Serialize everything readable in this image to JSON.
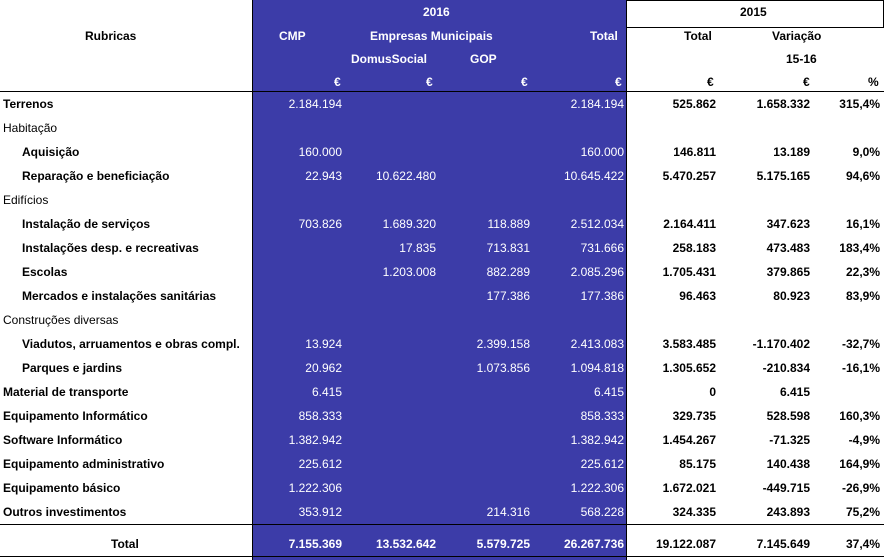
{
  "header": {
    "rubricas": "Rubricas",
    "year_2016": "2016",
    "year_2015": "2015",
    "cmp": "CMP",
    "empresas": "Empresas Municipais",
    "domus": "DomusSocial",
    "gop": "GOP",
    "total_2016": "Total",
    "total_2015": "Total",
    "variacao": "Variação",
    "variacao_range": "15-16",
    "unit_cmp": "€",
    "unit_domus": "€",
    "unit_gop": "€",
    "unit_total": "€",
    "unit_total15": "€",
    "unit_var": "€",
    "unit_pct": "%"
  },
  "rows": [
    {
      "label": "Terrenos",
      "indent": 0,
      "bold": true,
      "cmp": "2.184.194",
      "domus": "",
      "gop": "",
      "total": "2.184.194",
      "t15": "525.862",
      "var": "1.658.332",
      "pct": "315,4%"
    },
    {
      "label": "Habitação",
      "indent": 0,
      "bold": false,
      "cmp": "",
      "domus": "",
      "gop": "",
      "total": "",
      "t15": "",
      "var": "",
      "pct": ""
    },
    {
      "label": "Aquisição",
      "indent": 1,
      "bold": true,
      "cmp": "160.000",
      "domus": "",
      "gop": "",
      "total": "160.000",
      "t15": "146.811",
      "var": "13.189",
      "pct": "9,0%"
    },
    {
      "label": "Reparação e beneficiação",
      "indent": 1,
      "bold": true,
      "cmp": "22.943",
      "domus": "10.622.480",
      "gop": "",
      "total": "10.645.422",
      "t15": "5.470.257",
      "var": "5.175.165",
      "pct": "94,6%"
    },
    {
      "label": "Edifícios",
      "indent": 0,
      "bold": false,
      "cmp": "",
      "domus": "",
      "gop": "",
      "total": "",
      "t15": "",
      "var": "",
      "pct": ""
    },
    {
      "label": "Instalação de serviços",
      "indent": 1,
      "bold": true,
      "cmp": "703.826",
      "domus": "1.689.320",
      "gop": "118.889",
      "total": "2.512.034",
      "t15": "2.164.411",
      "var": "347.623",
      "pct": "16,1%"
    },
    {
      "label": "Instalações desp. e recreativas",
      "indent": 1,
      "bold": true,
      "cmp": "",
      "domus": "17.835",
      "gop": "713.831",
      "total": "731.666",
      "t15": "258.183",
      "var": "473.483",
      "pct": "183,4%"
    },
    {
      "label": "Escolas",
      "indent": 1,
      "bold": true,
      "cmp": "",
      "domus": "1.203.008",
      "gop": "882.289",
      "total": "2.085.296",
      "t15": "1.705.431",
      "var": "379.865",
      "pct": "22,3%"
    },
    {
      "label": "Mercados e instalações sanitárias",
      "indent": 1,
      "bold": true,
      "cmp": "",
      "domus": "",
      "gop": "177.386",
      "total": "177.386",
      "t15": "96.463",
      "var": "80.923",
      "pct": "83,9%"
    },
    {
      "label": "Construções diversas",
      "indent": 0,
      "bold": false,
      "cmp": "",
      "domus": "",
      "gop": "",
      "total": "",
      "t15": "",
      "var": "",
      "pct": ""
    },
    {
      "label": "Viadutos, arruamentos e obras compl.",
      "indent": 1,
      "bold": true,
      "cmp": "13.924",
      "domus": "",
      "gop": "2.399.158",
      "total": "2.413.083",
      "t15": "3.583.485",
      "var": "-1.170.402",
      "pct": "-32,7%"
    },
    {
      "label": "Parques e jardins",
      "indent": 1,
      "bold": true,
      "cmp": "20.962",
      "domus": "",
      "gop": "1.073.856",
      "total": "1.094.818",
      "t15": "1.305.652",
      "var": "-210.834",
      "pct": "-16,1%"
    },
    {
      "label": "Material de transporte",
      "indent": 0,
      "bold": true,
      "cmp": "6.415",
      "domus": "",
      "gop": "",
      "total": "6.415",
      "t15": "0",
      "var": "6.415",
      "pct": ""
    },
    {
      "label": "Equipamento Informático",
      "indent": 0,
      "bold": true,
      "cmp": "858.333",
      "domus": "",
      "gop": "",
      "total": "858.333",
      "t15": "329.735",
      "var": "528.598",
      "pct": "160,3%"
    },
    {
      "label": "Software Informático",
      "indent": 0,
      "bold": true,
      "cmp": "1.382.942",
      "domus": "",
      "gop": "",
      "total": "1.382.942",
      "t15": "1.454.267",
      "var": "-71.325",
      "pct": "-4,9%"
    },
    {
      "label": "Equipamento administrativo",
      "indent": 0,
      "bold": true,
      "cmp": "225.612",
      "domus": "",
      "gop": "",
      "total": "225.612",
      "t15": "85.175",
      "var": "140.438",
      "pct": "164,9%"
    },
    {
      "label": "Equipamento básico",
      "indent": 0,
      "bold": true,
      "cmp": "1.222.306",
      "domus": "",
      "gop": "",
      "total": "1.222.306",
      "t15": "1.672.021",
      "var": "-449.715",
      "pct": "-26,9%"
    },
    {
      "label": "Outros investimentos",
      "indent": 0,
      "bold": true,
      "cmp": "353.912",
      "domus": "",
      "gop": "214.316",
      "total": "568.228",
      "t15": "324.335",
      "var": "243.893",
      "pct": "75,2%"
    }
  ],
  "total_row": {
    "label": "Total",
    "cmp": "7.155.369",
    "domus": "13.532.642",
    "gop": "5.579.725",
    "total": "26.267.736",
    "t15": "19.122.087",
    "var": "7.145.649",
    "pct": "37,4%"
  }
}
